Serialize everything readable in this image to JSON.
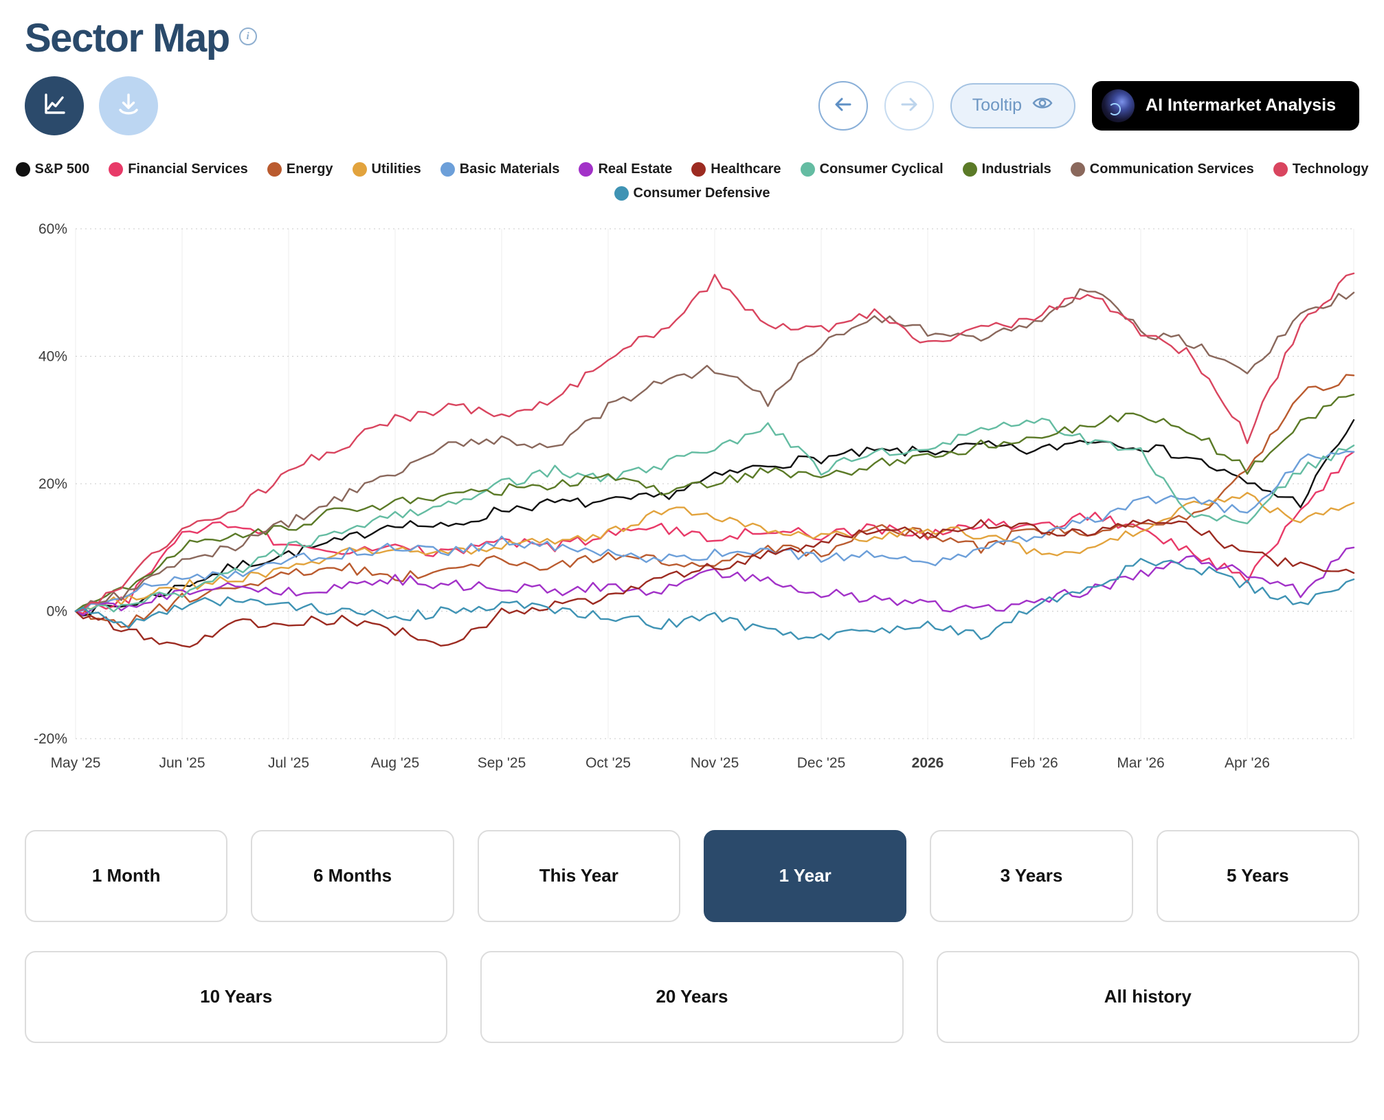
{
  "header": {
    "title": "Sector Map"
  },
  "toolbar": {
    "tooltip_label": "Tooltip",
    "ai_button_label": "AI Intermarket Analysis"
  },
  "colors": {
    "accent_navy": "#2B4A6B",
    "light_blue_button": "#BCD6F2",
    "active_range_bg": "#2B4A6B"
  },
  "chart_data": {
    "type": "line",
    "title": "Sector Map",
    "xlabel": "",
    "ylabel": "",
    "ylim": [
      -20,
      60
    ],
    "yticks": [
      -20,
      0,
      20,
      40,
      60
    ],
    "ytick_labels": [
      "-20%",
      "0%",
      "20%",
      "40%",
      "60%"
    ],
    "x_labels": [
      "May '25",
      "Jun '25",
      "Jul '25",
      "Aug '25",
      "Sep '25",
      "Oct '25",
      "Nov '25",
      "Dec '25",
      "2026",
      "Feb '26",
      "Mar '26",
      "Apr '26"
    ],
    "emphasized_tick": "2026",
    "grid": true,
    "legend_position": "top",
    "series": [
      {
        "name": "S&P 500",
        "color": "#111111",
        "values": [
          0,
          1,
          4,
          7,
          9,
          11,
          14,
          13,
          16,
          17,
          17,
          18,
          21,
          23,
          24,
          25,
          25,
          26,
          25,
          27,
          26,
          24,
          20,
          17,
          30
        ]
      },
      {
        "name": "Financial Services",
        "color": "#E83A68",
        "values": [
          0,
          2,
          12,
          14,
          10,
          9,
          10,
          9,
          11,
          10,
          12,
          13,
          11,
          13,
          12,
          13,
          12,
          14,
          13,
          15,
          13,
          9,
          5,
          16,
          25
        ]
      },
      {
        "name": "Energy",
        "color": "#BA5B2F",
        "values": [
          0,
          -2,
          2,
          4,
          6,
          7,
          5,
          7,
          8,
          7,
          9,
          8,
          7,
          10,
          9,
          13,
          12,
          10,
          13,
          12,
          14,
          15,
          22,
          34,
          37
        ]
      },
      {
        "name": "Utilities",
        "color": "#E2A33D",
        "values": [
          0,
          2,
          4,
          5,
          7,
          9,
          10,
          9,
          10,
          11,
          12,
          16,
          15,
          13,
          12,
          11,
          13,
          12,
          9,
          10,
          13,
          17,
          18,
          14,
          17
        ]
      },
      {
        "name": "Basic Materials",
        "color": "#6C9FD9",
        "values": [
          0,
          3,
          5,
          6,
          8,
          9,
          10,
          9,
          11,
          10,
          9,
          8,
          9,
          10,
          8,
          9,
          7,
          10,
          12,
          14,
          17,
          18,
          15,
          24,
          25
        ]
      },
      {
        "name": "Real Estate",
        "color": "#A232C8",
        "values": [
          0,
          1,
          3,
          4,
          3,
          4,
          5,
          4,
          4,
          3,
          4,
          3,
          6,
          5,
          3,
          2,
          1,
          0,
          2,
          3,
          6,
          8,
          6,
          3,
          10
        ]
      },
      {
        "name": "Healthcare",
        "color": "#9C2B21",
        "values": [
          0,
          -3,
          -6,
          -2,
          -2,
          -1,
          -3,
          -6,
          0,
          1,
          2,
          5,
          7,
          9,
          11,
          13,
          12,
          14,
          13,
          12,
          14,
          13,
          9,
          7,
          6
        ]
      },
      {
        "name": "Consumer Cyclical",
        "color": "#64BCA2",
        "values": [
          0,
          1,
          3,
          6,
          10,
          12,
          15,
          17,
          20,
          22,
          21,
          23,
          25,
          29,
          22,
          25,
          26,
          28,
          30,
          27,
          25,
          15,
          14,
          22,
          26
        ]
      },
      {
        "name": "Industrials",
        "color": "#5B7A27",
        "values": [
          0,
          4,
          10,
          12,
          13,
          16,
          17,
          18,
          19,
          20,
          21,
          19,
          20,
          22,
          21,
          23,
          24,
          26,
          27,
          29,
          31,
          28,
          22,
          30,
          34
        ]
      },
      {
        "name": "Communication Services",
        "color": "#8A685C",
        "values": [
          0,
          3,
          8,
          10,
          14,
          18,
          22,
          26,
          27,
          26,
          32,
          36,
          38,
          33,
          42,
          46,
          44,
          43,
          45,
          51,
          44,
          42,
          37,
          47,
          50
        ]
      },
      {
        "name": "Technology",
        "color": "#D9455F",
        "values": [
          0,
          5,
          13,
          16,
          22,
          26,
          30,
          32,
          31,
          33,
          40,
          44,
          52,
          45,
          44,
          47,
          42,
          44,
          46,
          50,
          44,
          40,
          27,
          45,
          53
        ]
      },
      {
        "name": "Consumer Defensive",
        "color": "#3F93B4",
        "values": [
          0,
          -2,
          1,
          2,
          1,
          0,
          -1,
          0,
          1,
          0,
          -1,
          -2,
          -1,
          -3,
          -4,
          -3,
          -2,
          -4,
          1,
          3,
          8,
          7,
          4,
          1,
          5
        ]
      }
    ]
  },
  "time_ranges": {
    "row1": [
      "1 Month",
      "6 Months",
      "This Year",
      "1 Year",
      "3 Years",
      "5 Years"
    ],
    "row2": [
      "10 Years",
      "20 Years",
      "All history"
    ],
    "active": "1 Year"
  }
}
